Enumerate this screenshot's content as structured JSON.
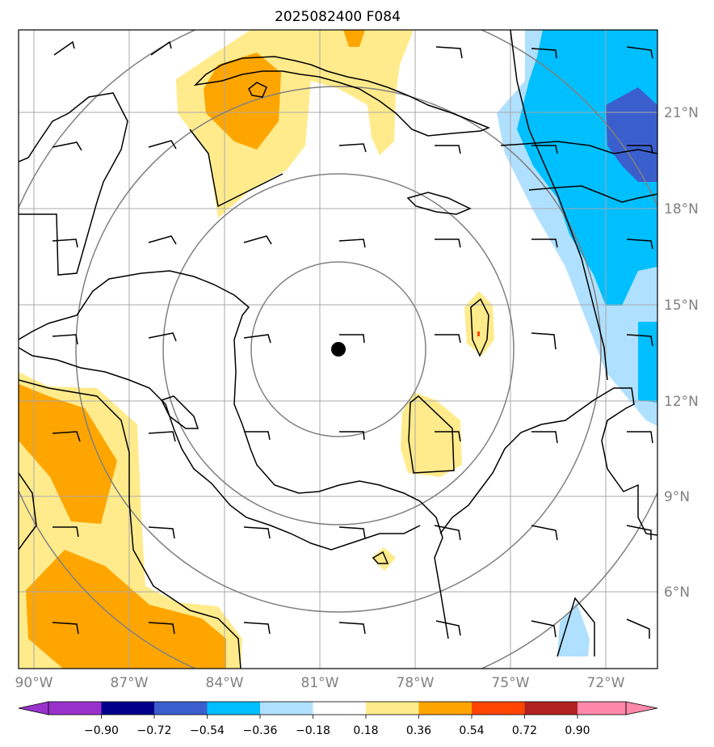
{
  "title": "2025082400 F084",
  "longitude_labels": [
    "90°W",
    "87°W",
    "84°W",
    "81°W",
    "78°W",
    "75°W",
    "72°W"
  ],
  "latitude_labels": [
    "21°N",
    "18°N",
    "15°N",
    "12°N",
    "9°N",
    "6°N"
  ],
  "colorbar": {
    "tick_labels": [
      "−0.90",
      "−0.72",
      "−0.54",
      "−0.36",
      "−0.18",
      "0.18",
      "0.36",
      "0.54",
      "0.72",
      "0.90"
    ],
    "colors": [
      "#9932cc",
      "#00008b",
      "#3a5fcd",
      "#00bfff",
      "#b0e0ff",
      "#ffffff",
      "#ffeb8c",
      "#ffa500",
      "#ff4500",
      "#b22222",
      "#ff88aa"
    ]
  },
  "field_colors": {
    "light_yellow": "#ffeb8c",
    "orange": "#ffa500",
    "light_blue": "#b0e0ff",
    "deep_sky_blue": "#00bfff",
    "royal_blue": "#3a5fcd"
  },
  "storm_center": {
    "lon": -80.3,
    "lat": 13.5
  },
  "range_rings": [
    "inner",
    "second",
    "third",
    "outer"
  ]
}
